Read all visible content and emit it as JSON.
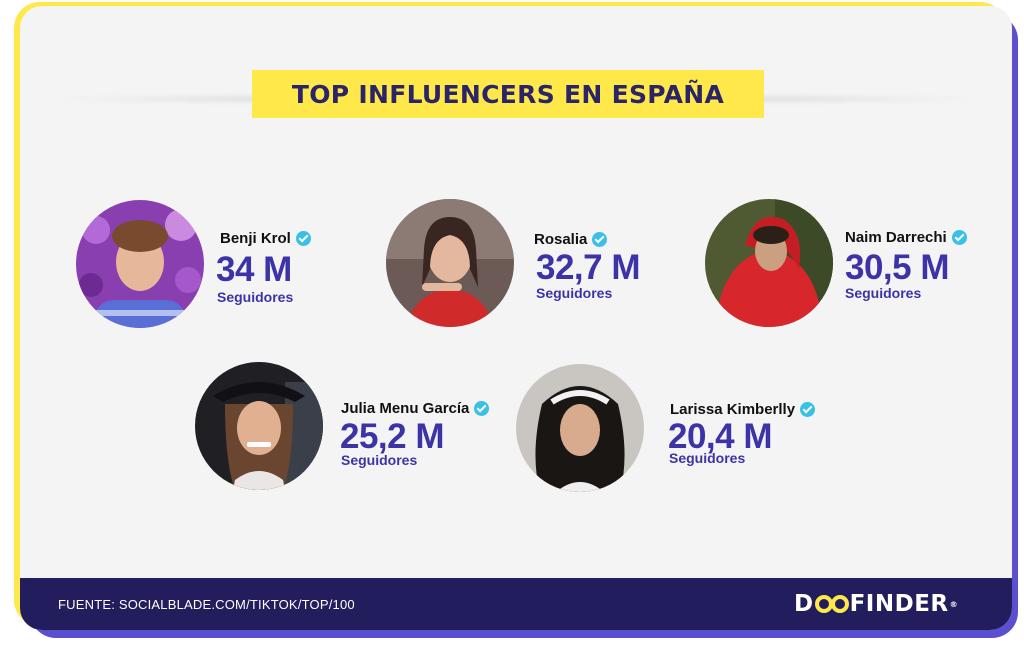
{
  "title": "TOP INFLUENCERS EN ESPAÑA",
  "influencers": [
    {
      "name": "Benji Krol",
      "followers": "34 M",
      "label": "Seguidores",
      "photo_bg": "#8a3fb0"
    },
    {
      "name": "Rosalia",
      "followers": "32,7 M",
      "label": "Seguidores",
      "photo_bg": "#6b5a56"
    },
    {
      "name": "Naim Darrechi",
      "followers": "30,5 M",
      "label": "Seguidores",
      "photo_bg": "#4f5a32"
    },
    {
      "name": "Julia Menu García",
      "followers": "25,2 M",
      "label": "Seguidores",
      "photo_bg": "#1f1f24"
    },
    {
      "name": "Larissa Kimberlly",
      "followers": "20,4 M",
      "label": "Seguidores",
      "photo_bg": "#c9c6c2"
    }
  ],
  "footer": {
    "source": "FUENTE: SOCIALBLADE.COM/TIKTOK/TOP/100",
    "logo_left": "D",
    "logo_right": "FINDER",
    "logo_mark": "®"
  },
  "colors": {
    "accent_yellow": "#ffe94a",
    "navy": "#221d5c",
    "purple": "#3c34a6",
    "verified": "#39c0e6"
  }
}
